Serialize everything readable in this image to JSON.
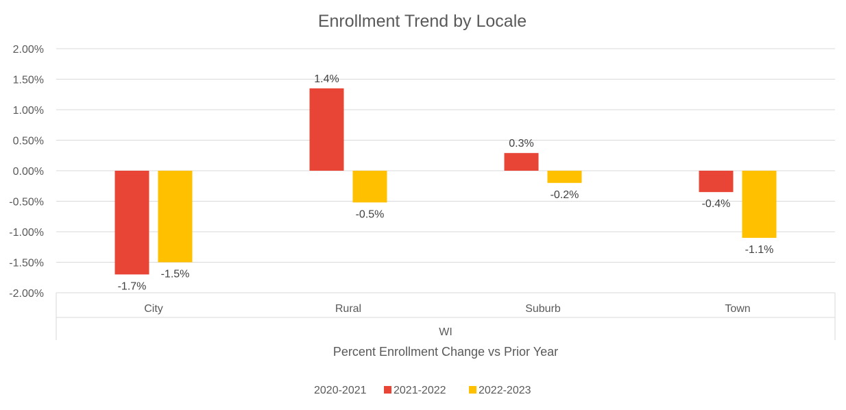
{
  "chart_data": {
    "type": "bar",
    "title": "Enrollment Trend by Locale",
    "group_label": "WI",
    "xlabel": "Percent Enrollment Change vs Prior Year",
    "ylabel": "",
    "categories": [
      "City",
      "Rural",
      "Suburb",
      "Town"
    ],
    "series": [
      {
        "name": "2020-2021",
        "color": "#4472C4",
        "values": [
          null,
          null,
          null,
          null
        ],
        "labels": [
          "",
          "",
          "",
          ""
        ]
      },
      {
        "name": "2021-2022",
        "color": "#E84536",
        "values": [
          -1.7,
          1.35,
          0.29,
          -0.35
        ],
        "labels": [
          "-1.7%",
          "1.4%",
          "0.3%",
          "-0.4%"
        ]
      },
      {
        "name": "2022-2023",
        "color": "#FFC000",
        "values": [
          -1.5,
          -0.52,
          -0.2,
          -1.1
        ],
        "labels": [
          "-1.5%",
          "-0.5%",
          "-0.2%",
          "-1.1%"
        ]
      }
    ],
    "ylim": [
      -2.0,
      2.0
    ],
    "yticks": [
      "2.00%",
      "1.50%",
      "1.00%",
      "0.50%",
      "0.00%",
      "-0.50%",
      "-1.00%",
      "-1.50%",
      "-2.00%"
    ],
    "ytick_values": [
      2.0,
      1.5,
      1.0,
      0.5,
      0.0,
      -0.5,
      -1.0,
      -1.5,
      -2.0
    ],
    "grid": true,
    "legend_position": "bottom"
  }
}
